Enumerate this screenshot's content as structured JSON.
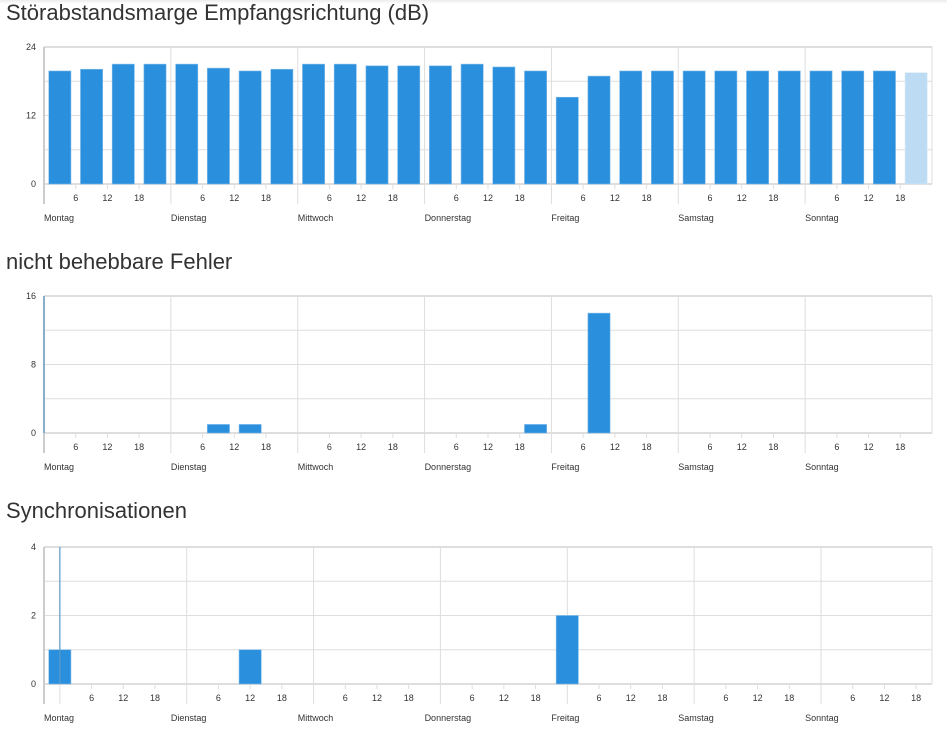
{
  "colors": {
    "bar": "#2a8fdd",
    "bar_partial": "#bddcf3",
    "grid": "#dedede",
    "cursor": "#5b9bc8"
  },
  "days": [
    "Montag",
    "Dienstag",
    "Mittwoch",
    "Donnerstag",
    "Freitag",
    "Samstag",
    "Sonntag"
  ],
  "hour_ticks": [
    "6",
    "12",
    "18"
  ],
  "chart_data": [
    {
      "type": "bar",
      "title": "Störabstandsmarge Empfangsrichtung (dB)",
      "xlabel": "",
      "ylabel": "",
      "ylim": [
        0,
        24
      ],
      "yticks": [
        "0",
        "12",
        "24"
      ],
      "ygrid_step": 6,
      "xlim_hours": [
        0,
        168
      ],
      "bar_width_hours": 4.2,
      "bars": [
        {
          "hour": 3,
          "value": 19.8
        },
        {
          "hour": 9,
          "value": 20.1
        },
        {
          "hour": 15,
          "value": 21
        },
        {
          "hour": 21,
          "value": 21
        },
        {
          "hour": 27,
          "value": 21
        },
        {
          "hour": 33,
          "value": 20.3
        },
        {
          "hour": 39,
          "value": 19.8
        },
        {
          "hour": 45,
          "value": 20.1
        },
        {
          "hour": 51,
          "value": 21
        },
        {
          "hour": 57,
          "value": 21
        },
        {
          "hour": 63,
          "value": 20.7
        },
        {
          "hour": 69,
          "value": 20.7
        },
        {
          "hour": 75,
          "value": 20.7
        },
        {
          "hour": 81,
          "value": 21
        },
        {
          "hour": 87,
          "value": 20.5
        },
        {
          "hour": 93,
          "value": 19.8
        },
        {
          "hour": 99,
          "value": 15.2
        },
        {
          "hour": 105,
          "value": 18.9
        },
        {
          "hour": 111,
          "value": 19.8
        },
        {
          "hour": 117,
          "value": 19.8
        },
        {
          "hour": 123,
          "value": 19.8
        },
        {
          "hour": 129,
          "value": 19.8
        },
        {
          "hour": 135,
          "value": 19.8
        },
        {
          "hour": 141,
          "value": 19.8
        },
        {
          "hour": 147,
          "value": 19.8
        },
        {
          "hour": 153,
          "value": 19.8
        },
        {
          "hour": 159,
          "value": 19.8
        },
        {
          "hour": 165,
          "value": 19.5,
          "partial": true
        }
      ]
    },
    {
      "type": "bar",
      "title": "nicht behebbare Fehler",
      "xlabel": "",
      "ylabel": "",
      "ylim": [
        0,
        16
      ],
      "yticks": [
        "0",
        "8",
        "16"
      ],
      "ygrid_step": 4,
      "xlim_hours": [
        0,
        168
      ],
      "bar_width_hours": 4.2,
      "cursor_hour": 0,
      "bars": [
        {
          "hour": 33,
          "value": 1
        },
        {
          "hour": 39,
          "value": 1
        },
        {
          "hour": 93,
          "value": 1
        },
        {
          "hour": 105,
          "value": 14
        }
      ]
    },
    {
      "type": "bar",
      "title": "Synchronisationen",
      "xlabel": "",
      "ylabel": "",
      "ylim": [
        0,
        4
      ],
      "yticks": [
        "0",
        "2",
        "4"
      ],
      "ygrid_step": 1,
      "xlim_hours": [
        -3,
        165
      ],
      "bar_width_hours": 4.2,
      "cursor_hour": 0,
      "bars": [
        {
          "hour": 0,
          "value": 1
        },
        {
          "hour": 36,
          "value": 1
        },
        {
          "hour": 96,
          "value": 2
        }
      ]
    }
  ]
}
